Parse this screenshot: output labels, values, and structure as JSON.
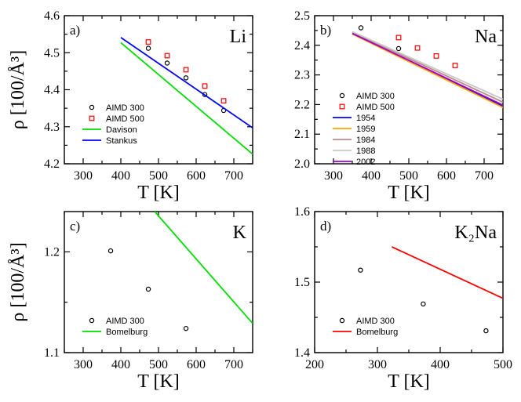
{
  "chart_data": [
    {
      "type": "line",
      "panel_label": "a)",
      "title": "Li",
      "xlabel": "T  [K]",
      "ylabel": "ρ  [100/Å³]",
      "xlim": [
        250,
        750
      ],
      "ylim": [
        4.2,
        4.6
      ],
      "xticks": [
        300,
        400,
        500,
        600,
        700
      ],
      "yticks": [
        4.2,
        4.3,
        4.4,
        4.5,
        4.6
      ],
      "legend_position": "lower-left",
      "series": [
        {
          "name": "AIMD 300",
          "kind": "circle",
          "color": "#000000",
          "x": [
            473,
            523,
            573,
            623,
            673
          ],
          "y": [
            4.512,
            4.472,
            4.432,
            4.387,
            4.344
          ]
        },
        {
          "name": "AIMD 500",
          "kind": "square",
          "color": "#ff0000",
          "x": [
            473,
            523,
            573,
            623,
            673
          ],
          "y": [
            4.529,
            4.492,
            4.454,
            4.41,
            4.37
          ]
        },
        {
          "name": "Davison",
          "kind": "line",
          "color": "#00dd00",
          "x": [
            400,
            750
          ],
          "y": [
            4.527,
            4.226
          ]
        },
        {
          "name": "Stankus",
          "kind": "line",
          "color": "#0000ff",
          "x": [
            400,
            750
          ],
          "y": [
            4.541,
            4.297
          ]
        }
      ]
    },
    {
      "type": "line",
      "panel_label": "b)",
      "title": "Na",
      "xlabel": "T  [K]",
      "ylabel": "",
      "xlim": [
        250,
        750
      ],
      "ylim": [
        2.0,
        2.5
      ],
      "xticks": [
        300,
        400,
        500,
        600,
        700
      ],
      "yticks": [
        2.0,
        2.1,
        2.2,
        2.3,
        2.4,
        2.5
      ],
      "legend_position": "lower-left",
      "series": [
        {
          "name": "AIMD 300",
          "kind": "circle",
          "color": "#000000",
          "x": [
            373,
            473
          ],
          "y": [
            2.459,
            2.389
          ]
        },
        {
          "name": "AIMD 500",
          "kind": "square",
          "color": "#ff0000",
          "x": [
            473,
            523,
            573,
            623
          ],
          "y": [
            2.426,
            2.391,
            2.364,
            2.332
          ]
        },
        {
          "name": "1954",
          "kind": "line",
          "color": "#0000ff",
          "x": [
            350,
            750
          ],
          "y": [
            2.44,
            2.195
          ]
        },
        {
          "name": "1959",
          "kind": "line",
          "color": "#ffa500",
          "x": [
            350,
            750
          ],
          "y": [
            2.438,
            2.19
          ]
        },
        {
          "name": "1984",
          "kind": "line",
          "color": "#c08a8a",
          "x": [
            350,
            750
          ],
          "y": [
            2.444,
            2.208
          ]
        },
        {
          "name": "1988",
          "kind": "line",
          "color": "#c8c8c8",
          "x": [
            350,
            750
          ],
          "y": [
            2.446,
            2.218
          ]
        },
        {
          "name": "2002",
          "kind": "line",
          "color": "#a000c8",
          "x": [
            350,
            750
          ],
          "y": [
            2.44,
            2.198
          ]
        }
      ]
    },
    {
      "type": "line",
      "panel_label": "c)",
      "title": "K",
      "xlabel": "T  [K]",
      "ylabel": "ρ  [100/Å³]",
      "xlim": [
        250,
        750
      ],
      "ylim": [
        1.1,
        1.24
      ],
      "xticks": [
        300,
        400,
        500,
        600,
        700
      ],
      "yticks": [
        1.1,
        1.2
      ],
      "legend_position": "lower-left",
      "series": [
        {
          "name": "AIMD 300",
          "kind": "circle",
          "color": "#000000",
          "x": [
            373,
            473,
            573
          ],
          "y": [
            1.201,
            1.163,
            1.124
          ]
        },
        {
          "name": "Bomelburg",
          "kind": "line",
          "color": "#00dd00",
          "x": [
            490,
            750
          ],
          "y": [
            1.24,
            1.129
          ]
        }
      ]
    },
    {
      "type": "line",
      "panel_label": "d)",
      "title": "K₂Na",
      "xlabel": "T  [K]",
      "ylabel": "",
      "xlim": [
        200,
        500
      ],
      "ylim": [
        1.4,
        1.6
      ],
      "xticks": [
        200,
        300,
        400,
        500
      ],
      "yticks": [
        1.4,
        1.5,
        1.6
      ],
      "legend_position": "lower-left",
      "series": [
        {
          "name": "AIMD 300",
          "kind": "circle",
          "color": "#000000",
          "x": [
            273,
            373,
            473
          ],
          "y": [
            1.517,
            1.469,
            1.431
          ]
        },
        {
          "name": "Bomelburg",
          "kind": "line",
          "color": "#ff0000",
          "x": [
            323,
            500
          ],
          "y": [
            1.55,
            1.477
          ]
        }
      ]
    }
  ]
}
